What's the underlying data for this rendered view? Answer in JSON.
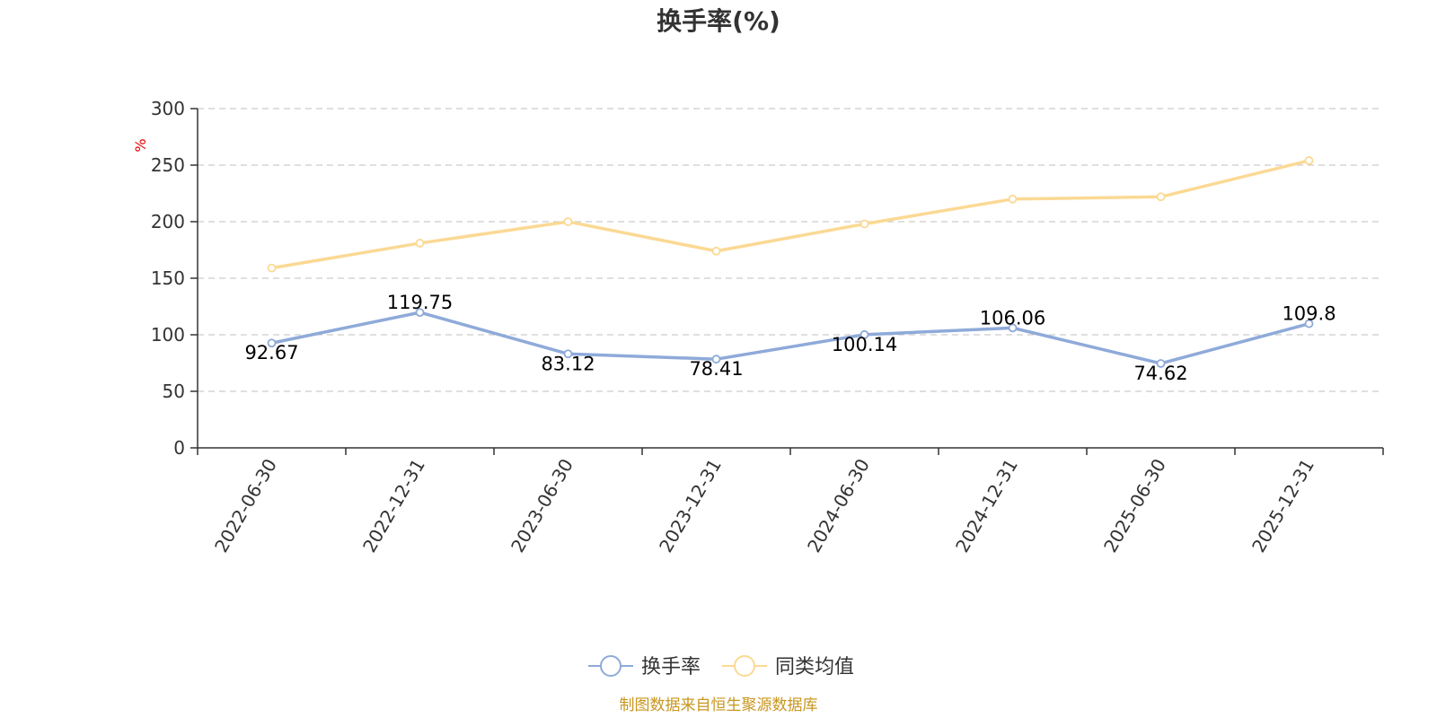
{
  "chart_data": {
    "type": "line",
    "title": "换手率(%)",
    "ylabel": "%",
    "xlabel": "",
    "ylim": [
      0,
      300
    ],
    "yticks": [
      0,
      50,
      100,
      150,
      200,
      250,
      300
    ],
    "grid": true,
    "legend_position": "bottom-center",
    "categories": [
      "2022-06-30",
      "2022-12-31",
      "2023-06-30",
      "2023-12-31",
      "2024-06-30",
      "2024-12-31",
      "2025-06-30",
      "2025-12-31"
    ],
    "series": [
      {
        "name": "换手率",
        "color": "#8eaad9",
        "values": [
          92.67,
          119.75,
          83.12,
          78.41,
          100.14,
          106.06,
          74.62,
          109.8
        ],
        "labels": [
          "92.67",
          "119.75",
          "83.12",
          "78.41",
          "100.14",
          "106.06",
          "74.62",
          "109.8"
        ],
        "show_labels": true
      },
      {
        "name": "同类均值",
        "color": "#fbd994",
        "values": [
          159,
          181,
          200,
          174,
          198,
          220,
          222,
          254
        ],
        "show_labels": false
      }
    ],
    "source": "制图数据来自恒生聚源数据库"
  }
}
